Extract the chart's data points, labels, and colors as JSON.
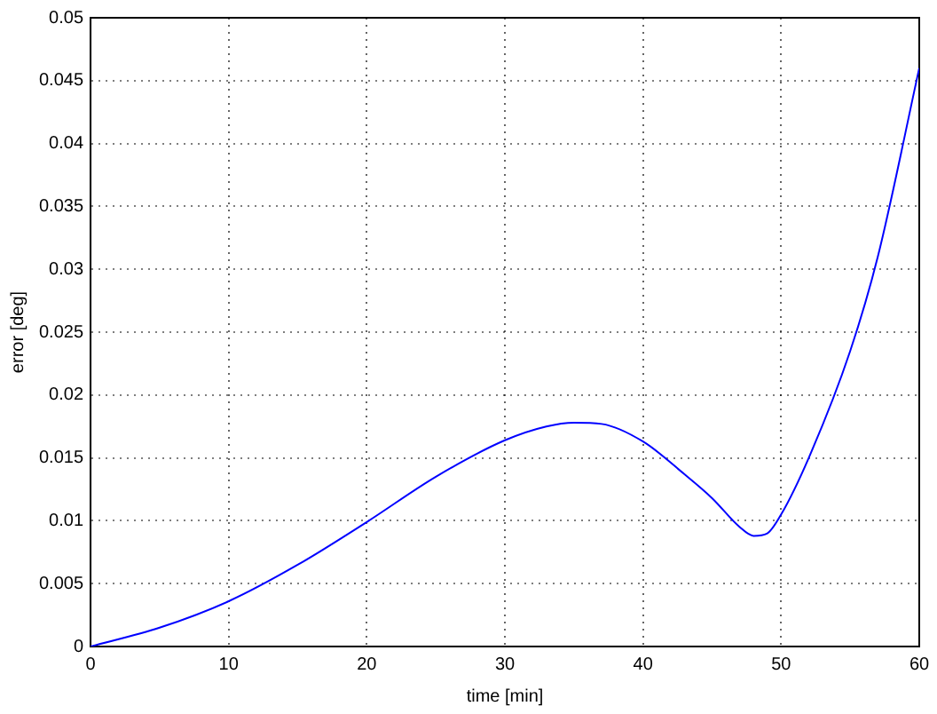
{
  "chart_data": {
    "type": "line",
    "xlabel": "time [min]",
    "ylabel": "error [deg]",
    "series": [
      {
        "color": "#0000ff",
        "x": [
          0,
          5,
          10,
          15,
          20,
          25,
          30,
          33,
          35,
          37,
          40,
          43,
          45,
          47,
          48,
          49,
          50,
          52,
          55,
          57,
          60
        ],
        "values": [
          0,
          0.0015,
          0.0036,
          0.0065,
          0.0099,
          0.0135,
          0.0164,
          0.0175,
          0.0178,
          0.0177,
          0.0163,
          0.0137,
          0.0118,
          0.0095,
          0.0088,
          0.009,
          0.0105,
          0.015,
          0.0235,
          0.031,
          0.046
        ]
      }
    ],
    "xlim": [
      0,
      60
    ],
    "xticks": [
      0,
      10,
      20,
      30,
      40,
      50,
      60
    ],
    "ylim": [
      0,
      0.05
    ],
    "yticks": [
      0,
      0.005,
      0.01,
      0.015,
      0.02,
      0.025,
      0.03,
      0.035,
      0.04,
      0.045,
      0.05
    ],
    "grid": true,
    "legend": false,
    "marker": "none",
    "line_style": "solid"
  }
}
